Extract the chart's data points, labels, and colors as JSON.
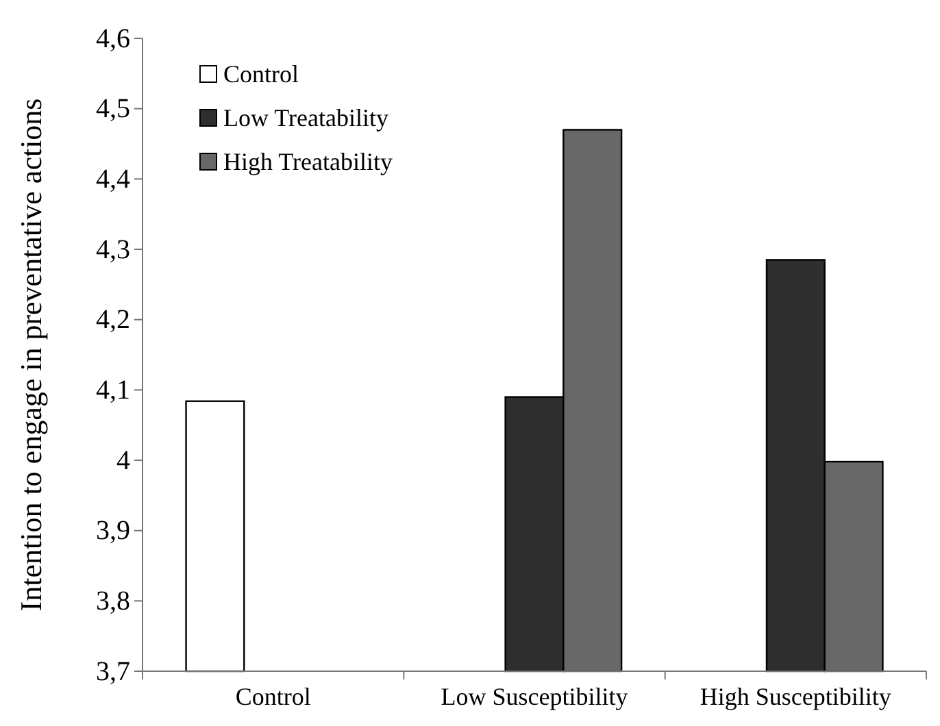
{
  "chart_data": {
    "type": "bar",
    "ylabel": "Intention to engage in preventative actions",
    "categories": [
      "Control",
      "Low Susceptibility",
      "High Susceptibility"
    ],
    "series": [
      {
        "name": "Control",
        "color": "#ffffff",
        "values": [
          4.084,
          null,
          null
        ]
      },
      {
        "name": "Low Treatability",
        "color": "#2e2e2e",
        "values": [
          null,
          4.09,
          4.285
        ]
      },
      {
        "name": "High Treatability",
        "color": "#686868",
        "values": [
          null,
          4.47,
          3.998
        ]
      }
    ],
    "ylim": [
      3.7,
      4.6
    ],
    "yticks": [
      {
        "value": 3.7,
        "label": "3,7"
      },
      {
        "value": 3.8,
        "label": "3,8"
      },
      {
        "value": 3.9,
        "label": "3,9"
      },
      {
        "value": 4,
        "label": "4"
      },
      {
        "value": 4.1,
        "label": "4,1"
      },
      {
        "value": 4.2,
        "label": "4,2"
      },
      {
        "value": 4.3,
        "label": "4,3"
      },
      {
        "value": 4.4,
        "label": "4,4"
      },
      {
        "value": 4.5,
        "label": "4,5"
      },
      {
        "value": 4.6,
        "label": "4,6"
      }
    ],
    "grid": false,
    "legend": "top left"
  }
}
